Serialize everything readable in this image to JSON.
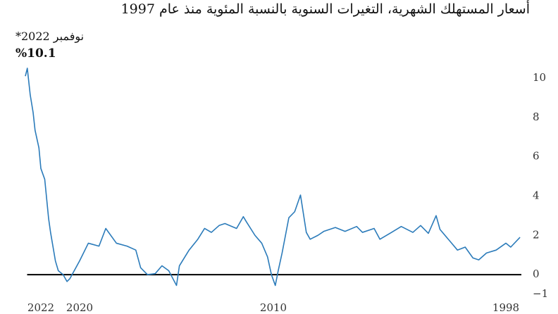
{
  "chart_data": {
    "type": "line",
    "title": "أسعار المستهلك الشهرية، التغيرات السنوية بالنسبة المئوية منذ عام 1997",
    "annotation": "نوفمبر 2022*",
    "annotation_value": "%10.1",
    "x": [
      1997.27,
      1997.75,
      1998.0,
      1998.5,
      1999.0,
      1999.4,
      1999.7,
      2000.1,
      2000.5,
      2000.8,
      2001.4,
      2001.6,
      2002.0,
      2002.4,
      2002.8,
      2003.4,
      2003.9,
      2004.5,
      2004.8,
      2005.4,
      2005.7,
      2006.3,
      2006.8,
      2007.4,
      2007.7,
      2008.1,
      2008.3,
      2008.6,
      2008.9,
      2009.2,
      2009.55,
      2009.75,
      2009.9,
      2010.1,
      2010.3,
      2010.6,
      2010.95,
      2011.4,
      2011.55,
      2011.9,
      2012.5,
      2012.8,
      2013.2,
      2013.55,
      2013.9,
      2014.35,
      2014.85,
      2015.0,
      2015.4,
      2015.75,
      2016.1,
      2016.5,
      2016.85,
      2017.1,
      2017.55,
      2018.1,
      2018.65,
      2019.0,
      2019.55,
      2020.0,
      2020.5,
      2020.65,
      2020.85,
      2021.1,
      2021.25,
      2021.5,
      2021.6,
      2021.8,
      2022.0,
      2022.1,
      2022.3,
      2022.4,
      2022.55,
      2022.7,
      2022.8
    ],
    "values": [
      1.9,
      1.4,
      1.6,
      1.25,
      1.1,
      0.75,
      0.85,
      1.4,
      1.25,
      1.6,
      2.3,
      3.0,
      2.1,
      2.5,
      2.15,
      2.45,
      2.15,
      1.8,
      2.35,
      2.15,
      2.45,
      2.2,
      2.4,
      2.2,
      2.0,
      1.8,
      2.15,
      4.05,
      3.2,
      2.9,
      1.1,
      0.2,
      -0.55,
      0,
      0.9,
      1.6,
      2.0,
      2.7,
      2.95,
      2.35,
      2.6,
      2.5,
      2.15,
      2.35,
      1.8,
      1.25,
      0.45,
      -0.55,
      0.2,
      0.45,
      0.05,
      0,
      0.35,
      1.25,
      1.45,
      1.6,
      2.35,
      1.45,
      1.6,
      0.7,
      -0.2,
      -0.35,
      0,
      0.2,
      0.7,
      2.15,
      2.85,
      4.85,
      5.4,
      6.45,
      7.35,
      8.25,
      9.15,
      10.5,
      10.1
    ],
    "color": "#2b7bba",
    "xlim": [
      1997.0,
      2023.0
    ],
    "x_reversed": true,
    "xticks": [
      1998,
      2010,
      2020,
      2022
    ],
    "ylim": [
      -1,
      11
    ],
    "yticks": [
      {
        "value": -1,
        "label": "−1"
      },
      0,
      2,
      4,
      6,
      8,
      10
    ],
    "zero_line": true
  }
}
